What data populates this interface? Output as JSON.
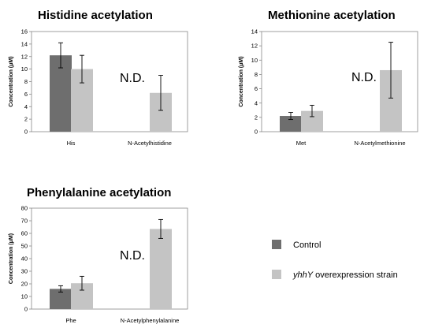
{
  "chart_data": [
    {
      "type": "bar",
      "title": "Histidine acetylation",
      "ylabel": "Concentration (μM)",
      "categories": [
        "His",
        "N-Acetylhistidine"
      ],
      "ylim": [
        0,
        16
      ],
      "yticks": [
        0,
        2,
        4,
        6,
        8,
        10,
        12,
        14,
        16
      ],
      "series": [
        {
          "name": "Control",
          "values": [
            12.2,
            null
          ],
          "errors": [
            2.0,
            null
          ]
        },
        {
          "name": "yhhY overexpression strain",
          "values": [
            10.0,
            6.2
          ],
          "errors": [
            2.2,
            2.8
          ]
        }
      ],
      "annotation": "N.D."
    },
    {
      "type": "bar",
      "title": "Methionine acetylation",
      "ylabel": "Concentration (μM)",
      "categories": [
        "Met",
        "N-Acetylmethionine"
      ],
      "ylim": [
        0,
        14
      ],
      "yticks": [
        0,
        2,
        4,
        6,
        8,
        10,
        12,
        14
      ],
      "series": [
        {
          "name": "Control",
          "values": [
            2.2,
            null
          ],
          "errors": [
            0.5,
            null
          ]
        },
        {
          "name": "yhhY overexpression strain",
          "values": [
            2.9,
            8.6
          ],
          "errors": [
            0.8,
            3.9
          ]
        }
      ],
      "annotation": "N.D."
    },
    {
      "type": "bar",
      "title": "Phenylalanine acetylation",
      "ylabel": "Concentration (μM)",
      "categories": [
        "Phe",
        "N-Acetylphenylalanine"
      ],
      "ylim": [
        0,
        80
      ],
      "yticks": [
        0,
        10,
        20,
        30,
        40,
        50,
        60,
        70,
        80
      ],
      "series": [
        {
          "name": "Control",
          "values": [
            16.0,
            null
          ],
          "errors": [
            2.5,
            null
          ]
        },
        {
          "name": "yhhY overexpression strain",
          "values": [
            20.5,
            63.5
          ],
          "errors": [
            5.5,
            7.5
          ]
        }
      ],
      "annotation": "N.D."
    }
  ],
  "legend": {
    "entries": [
      {
        "label": "Control",
        "color": "#6e6e6e"
      },
      {
        "label_italic": "yhhY",
        "label": " overexpression strain",
        "color": "#c4c4c4"
      }
    ]
  },
  "colors": {
    "control": "#6e6e6e",
    "overexpression": "#c4c4c4",
    "axis": "#888888"
  }
}
